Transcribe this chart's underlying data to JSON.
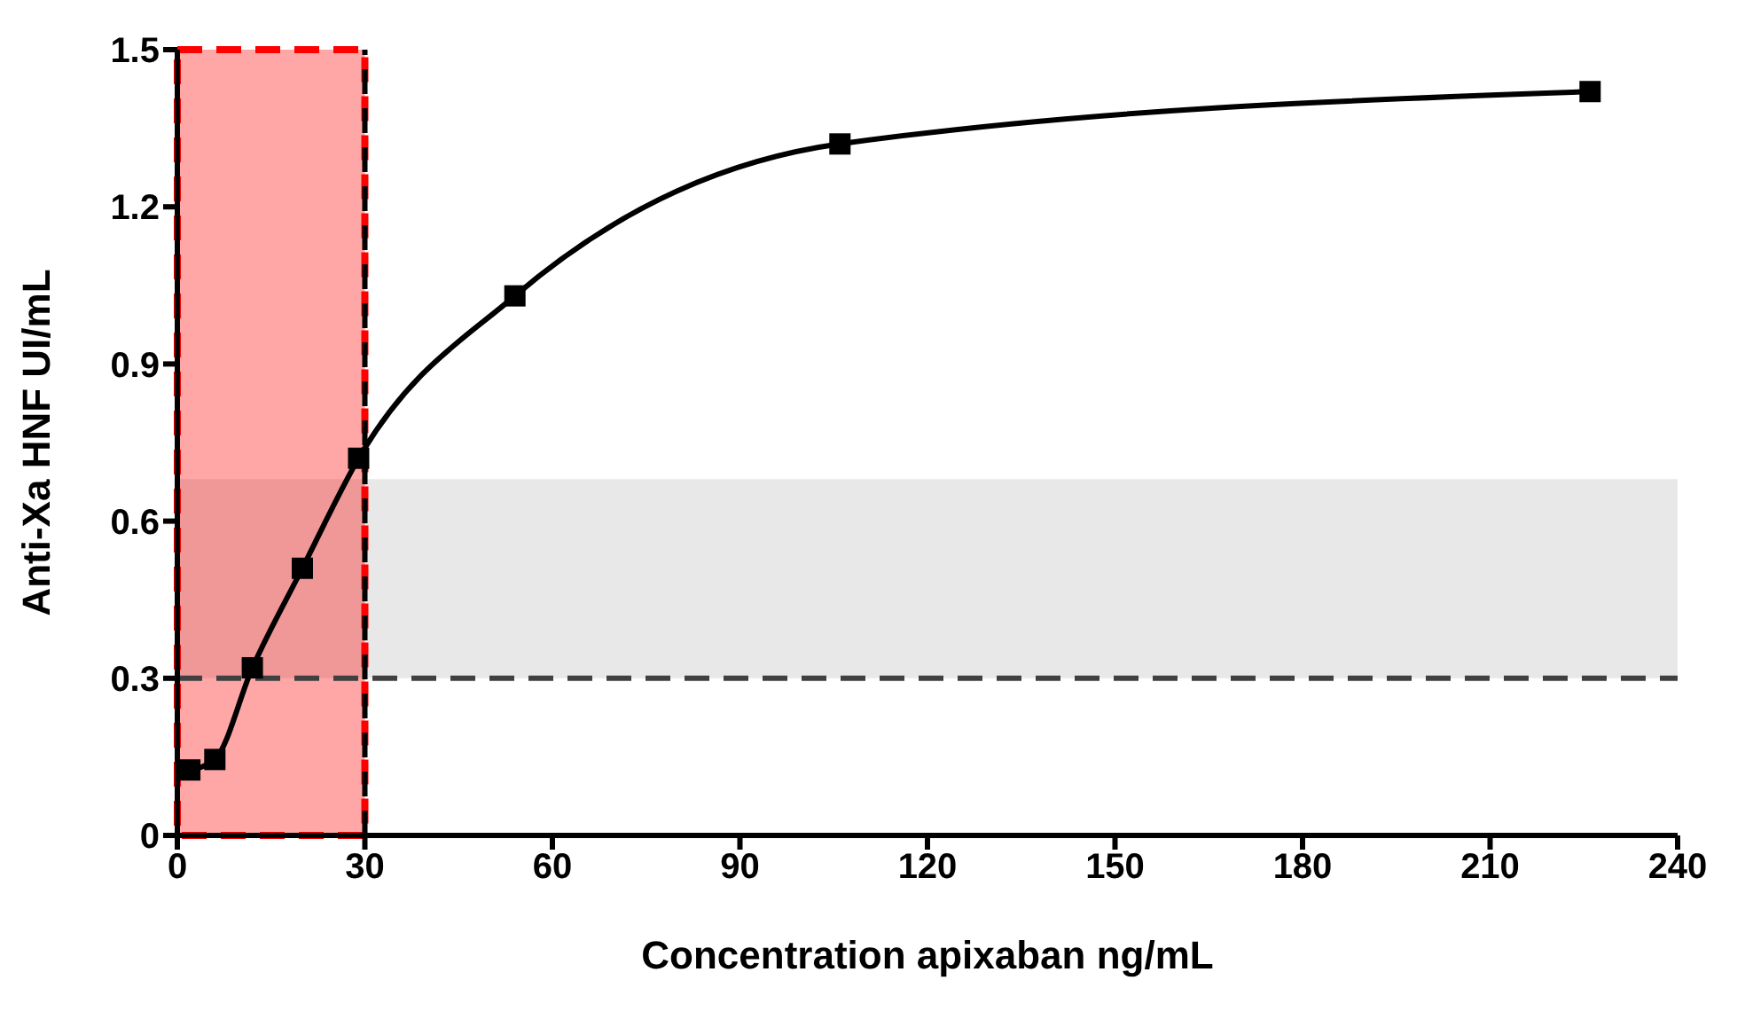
{
  "chart_data": {
    "type": "line",
    "xlabel": "Concentration apixaban ng/mL",
    "ylabel": "Anti-Xa HNF UI/mL",
    "x": [
      2,
      6,
      12,
      20,
      29,
      54,
      106,
      226
    ],
    "series": [
      {
        "color": "#000000",
        "values": [
          0.125,
          0.145,
          0.32,
          0.51,
          0.72,
          1.03,
          1.32,
          1.42
        ]
      }
    ],
    "xlim": [
      0,
      240
    ],
    "xticks": [
      0,
      30,
      60,
      90,
      120,
      150,
      180,
      210,
      240
    ],
    "ylim": [
      0,
      1.5
    ],
    "yticks": [
      0,
      0.3,
      0.6,
      0.9,
      1.2,
      1.5
    ],
    "ref_lines": [
      {
        "axis": "y",
        "value": 0.3,
        "color": "#404040",
        "line_style": "dashed"
      },
      {
        "axis": "x",
        "value": 30,
        "color": "#000000",
        "line_style": "dashed"
      }
    ],
    "bands": [
      {
        "axis": "y",
        "from": 0.3,
        "to": 0.68,
        "color": "#e8e8e8"
      },
      {
        "axis": "x",
        "from": 0,
        "to": 30,
        "color": "#ff0000"
      }
    ],
    "marker": "square"
  }
}
